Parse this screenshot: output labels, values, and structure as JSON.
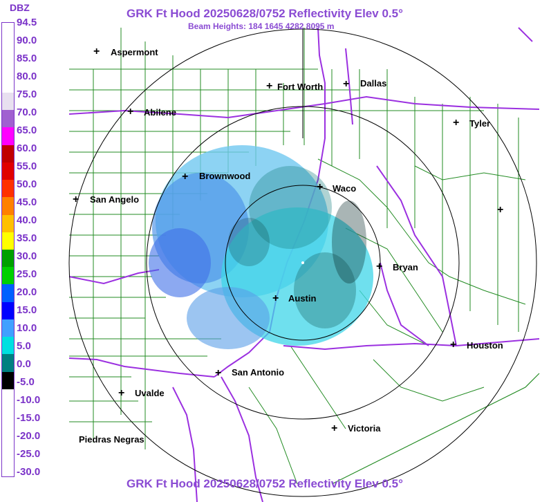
{
  "title": "GRK Ft Hood 20250628/0752 Reflectivity Elev 0.5°",
  "subtitle": "Beam Heights: 184 1645 4282 8095 m",
  "legend": {
    "unit": "DBZ",
    "labels": [
      "94.5",
      "90.0",
      "85.0",
      "80.0",
      "75.0",
      "70.0",
      "65.0",
      "60.0",
      "55.0",
      "50.0",
      "45.0",
      "40.0",
      "35.0",
      "30.0",
      "25.0",
      "20.0",
      "15.0",
      "10.0",
      "5.0",
      "0.0",
      "-5.0",
      "-10.0",
      "-15.0",
      "-20.0",
      "-25.0",
      "-30.0"
    ],
    "colors": [
      "#ffffff",
      "#ffffff",
      "#ffffff",
      "#ffffff",
      "#e8e0f0",
      "#a060d0",
      "#ff00ff",
      "#c00000",
      "#e00000",
      "#ff3000",
      "#ff8000",
      "#ffc000",
      "#ffff00",
      "#00a000",
      "#00d000",
      "#0060ff",
      "#0000ff",
      "#40a0ff",
      "#00e0e0",
      "#008080",
      "#000000",
      "#ffffff",
      "#ffffff",
      "#ffffff",
      "#ffffff",
      "#ffffff"
    ]
  },
  "cities": [
    {
      "id": "aspermont",
      "name": "Aspermont"
    },
    {
      "id": "fort-worth",
      "name": "Fort Worth"
    },
    {
      "id": "dallas",
      "name": "Dallas"
    },
    {
      "id": "abilene",
      "name": "Abilene"
    },
    {
      "id": "tyler",
      "name": "Tyler"
    },
    {
      "id": "brownwood",
      "name": "Brownwood"
    },
    {
      "id": "waco",
      "name": "Waco"
    },
    {
      "id": "san-angelo",
      "name": "San Angelo"
    },
    {
      "id": "bryan",
      "name": "Bryan"
    },
    {
      "id": "austin",
      "name": "Austin"
    },
    {
      "id": "houston",
      "name": "Houston"
    },
    {
      "id": "san-antonio",
      "name": "San Antonio"
    },
    {
      "id": "uvalde",
      "name": "Uvalde"
    },
    {
      "id": "victoria",
      "name": "Victoria"
    },
    {
      "id": "piedras-negras",
      "name": "Piedras Negras"
    }
  ],
  "range_rings": 4
}
